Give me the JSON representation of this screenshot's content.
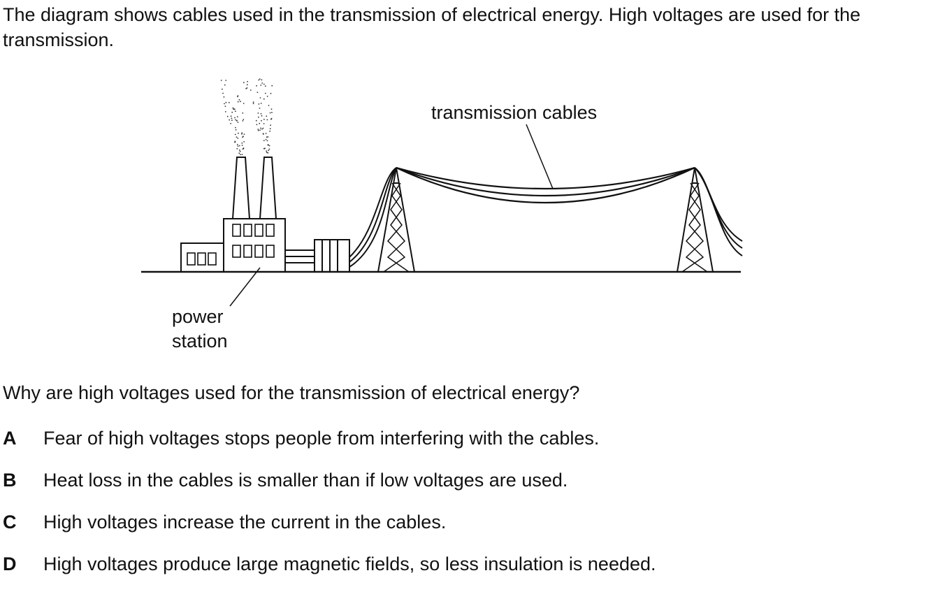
{
  "intro_text": "The diagram shows cables used in the transmission of electrical energy. High voltages are used for the transmission.",
  "diagram": {
    "label_cables": "transmission cables",
    "label_power_line1": "power",
    "label_power_line2": "station"
  },
  "question": "Why are high voltages used for the transmission of electrical energy?",
  "options": [
    {
      "letter": "A",
      "text": "Fear of high voltages stops people from interfering with the cables."
    },
    {
      "letter": "B",
      "text": "Heat loss in the cables is smaller than if low voltages are used."
    },
    {
      "letter": "C",
      "text": "High voltages increase the current in the cables."
    },
    {
      "letter": "D",
      "text": "High voltages produce large magnetic fields, so less insulation is needed."
    }
  ]
}
